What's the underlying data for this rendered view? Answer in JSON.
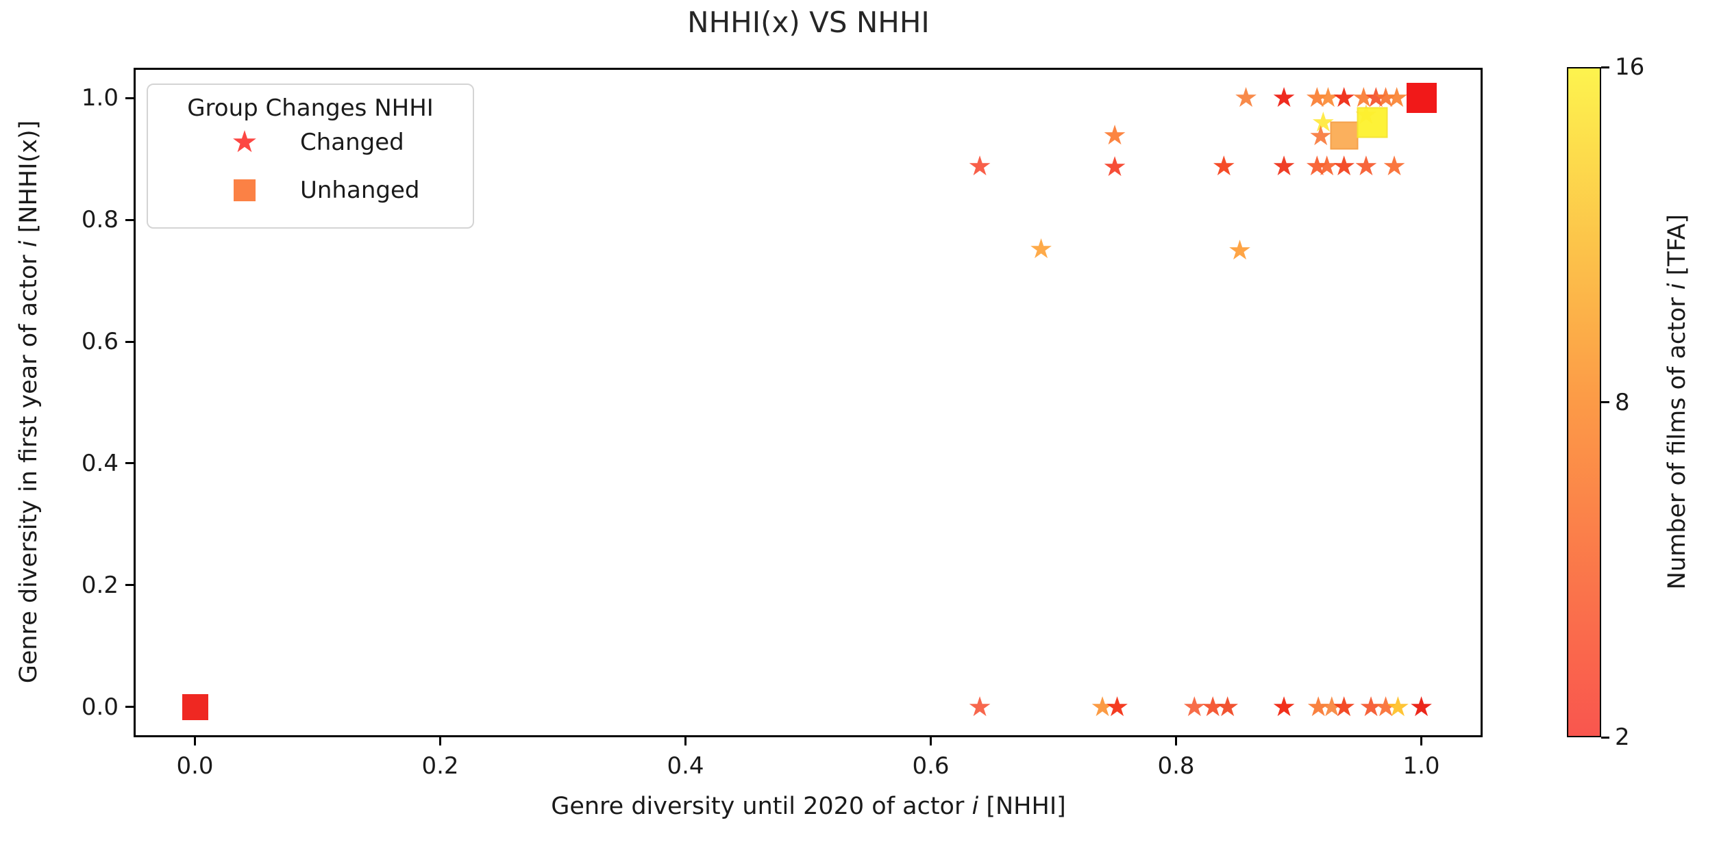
{
  "title": "NHHI(x) VS NHHI",
  "labels": {
    "xlabel": {
      "pre": "Genre diversity until 2020 of actor ",
      "it": "i",
      "post": " [NHHI]"
    },
    "ylabel": {
      "pre": "Genre diversity in first year of actor ",
      "it": "i",
      "post": " [NHHI(x)]"
    },
    "cbar": {
      "pre": "Number of films of actor ",
      "it": "i",
      "post": " [TFA]"
    }
  },
  "legend": {
    "title": "Group Changes NHHI",
    "entries": [
      {
        "label": "Changed",
        "marker": "star",
        "color": "#fc4743"
      },
      {
        "label": "Unhanged",
        "marker": "square",
        "color": "#fb8145"
      }
    ]
  },
  "chart_data": {
    "type": "scatter",
    "title": "NHHI(x) VS NHHI",
    "xlabel": "Genre diversity until 2020 of actor i [NHHI]",
    "ylabel": "Genre diversity in first year of actor i [NHHI(x)]",
    "xlim": [
      -0.05,
      1.05
    ],
    "ylim": [
      -0.05,
      1.05
    ],
    "grid": false,
    "legend_position": "upper left",
    "x_ticks": {
      "values": [
        0.0,
        0.2,
        0.4,
        0.6,
        0.8,
        1.0
      ],
      "labels": [
        "0.0",
        "0.2",
        "0.4",
        "0.6",
        "0.8",
        "1.0"
      ]
    },
    "y_ticks": {
      "values": [
        0.0,
        0.2,
        0.4,
        0.6,
        0.8,
        1.0
      ],
      "labels": [
        "0.0",
        "0.2",
        "0.4",
        "0.6",
        "0.8",
        "1.0"
      ]
    },
    "colorbar": {
      "label": "Number of films of actor i [TFA]",
      "range": [
        2,
        16
      ],
      "ticks": [
        {
          "label": "16",
          "frac": 1.0
        },
        {
          "label": "8",
          "frac": 0.5
        },
        {
          "label": "2",
          "frac": 0.0
        }
      ],
      "gradient": {
        "bottom": "#f9564e",
        "middle": "#fc9a47",
        "top": "#fdf34e"
      }
    },
    "series": [
      {
        "name": "Changed",
        "marker": "star",
        "points": [
          {
            "x": 0.857,
            "y": 1.0,
            "color": "#f8813b"
          },
          {
            "x": 0.888,
            "y": 1.0,
            "color": "#ee1a0e"
          },
          {
            "x": 0.915,
            "y": 1.0,
            "color": "#fa7d31"
          },
          {
            "x": 0.924,
            "y": 1.0,
            "color": "#fb8c36"
          },
          {
            "x": 0.937,
            "y": 1.0,
            "color": "#ef250e"
          },
          {
            "x": 0.953,
            "y": 1.0,
            "color": "#fa7c33"
          },
          {
            "x": 0.963,
            "y": 1.0,
            "color": "#f4502a"
          },
          {
            "x": 0.971,
            "y": 1.0,
            "color": "#f8722f"
          },
          {
            "x": 0.98,
            "y": 1.0,
            "color": "#fa8433"
          },
          {
            "x": 0.92,
            "y": 0.96,
            "color": "#ffe93b"
          },
          {
            "x": 0.955,
            "y": 0.972,
            "color": "#fed44d"
          },
          {
            "x": 0.918,
            "y": 0.938,
            "color": "#f87a3c"
          },
          {
            "x": 0.75,
            "y": 0.939,
            "color": "#fc7b33"
          },
          {
            "x": 0.64,
            "y": 0.888,
            "color": "#f8523a"
          },
          {
            "x": 0.75,
            "y": 0.887,
            "color": "#f64028"
          },
          {
            "x": 0.839,
            "y": 0.888,
            "color": "#f53d17"
          },
          {
            "x": 0.888,
            "y": 0.888,
            "color": "#ee2f16"
          },
          {
            "x": 0.915,
            "y": 0.888,
            "color": "#f85a2b"
          },
          {
            "x": 0.923,
            "y": 0.888,
            "color": "#f9632e"
          },
          {
            "x": 0.937,
            "y": 0.888,
            "color": "#f33f1b"
          },
          {
            "x": 0.955,
            "y": 0.888,
            "color": "#f75a2d"
          },
          {
            "x": 0.978,
            "y": 0.888,
            "color": "#fa6c30"
          },
          {
            "x": 0.69,
            "y": 0.752,
            "color": "#fea33a"
          },
          {
            "x": 0.852,
            "y": 0.75,
            "color": "#fe9d36"
          },
          {
            "x": 0.64,
            "y": 0.0,
            "color": "#f75b3e"
          },
          {
            "x": 0.74,
            "y": 0.0,
            "color": "#fb9335"
          },
          {
            "x": 0.752,
            "y": 0.0,
            "color": "#f42c10"
          },
          {
            "x": 0.815,
            "y": 0.0,
            "color": "#f7613a"
          },
          {
            "x": 0.83,
            "y": 0.0,
            "color": "#f54e28"
          },
          {
            "x": 0.842,
            "y": 0.0,
            "color": "#f04520"
          },
          {
            "x": 0.888,
            "y": 0.0,
            "color": "#f01f09"
          },
          {
            "x": 0.916,
            "y": 0.0,
            "color": "#f9772f"
          },
          {
            "x": 0.927,
            "y": 0.0,
            "color": "#f8863c"
          },
          {
            "x": 0.937,
            "y": 0.0,
            "color": "#f23c16"
          },
          {
            "x": 0.959,
            "y": 0.0,
            "color": "#f5552b"
          },
          {
            "x": 0.971,
            "y": 0.0,
            "color": "#fa6e33"
          },
          {
            "x": 0.981,
            "y": 0.0,
            "color": "#ffc125"
          },
          {
            "x": 1.0,
            "y": 0.0,
            "color": "#ea1508"
          }
        ]
      },
      {
        "name": "Unhanged",
        "marker": "square",
        "points": [
          {
            "x": 0.0,
            "y": 0.0,
            "color": "#ee1c16",
            "size": 38
          },
          {
            "x": 1.0,
            "y": 1.0,
            "color": "#f00d0d",
            "size": 44
          },
          {
            "x": 0.937,
            "y": 0.939,
            "color": "#fbac55",
            "size": 37,
            "border": "#f59d42"
          },
          {
            "x": 0.96,
            "y": 0.96,
            "color": "#fdf22e",
            "size": 41,
            "border": "#f5e32e"
          }
        ]
      }
    ]
  }
}
